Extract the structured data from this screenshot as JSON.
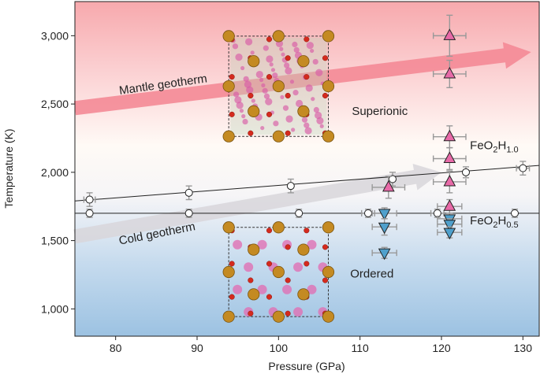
{
  "chart_data": {
    "type": "scatter",
    "xlabel": "Pressure (GPa)",
    "ylabel": "Temperature (K)",
    "xlim": [
      75,
      132
    ],
    "ylim": [
      800,
      3250
    ],
    "xticks": [
      80,
      90,
      100,
      110,
      120,
      130
    ],
    "yticks": [
      1000,
      1500,
      2000,
      2500,
      3000
    ],
    "ytick_labels": [
      "1,000",
      "1,500",
      "2,000",
      "2,500",
      "3,000"
    ],
    "grid": false,
    "background": "vertical gradient: red (top) to white (~2000 K) to blue (bottom)",
    "series": [
      {
        "name": "FeO2H1.0 boundary",
        "marker": "circle-open",
        "points": [
          {
            "x": 76.8,
            "y": 1800,
            "xerr": 0.7,
            "yerr": 50
          },
          {
            "x": 89,
            "y": 1850,
            "xerr": 0,
            "yerr": 50
          },
          {
            "x": 101.5,
            "y": 1900,
            "xerr": 0,
            "yerr": 50
          },
          {
            "x": 114,
            "y": 1950,
            "xerr": 0,
            "yerr": 50
          },
          {
            "x": 123,
            "y": 2000,
            "xerr": 0,
            "yerr": 40
          },
          {
            "x": 130,
            "y": 2030,
            "xerr": 0.8,
            "yerr": 50
          }
        ],
        "fit_line": {
          "x": [
            75,
            132
          ],
          "y": [
            1790,
            2050
          ]
        }
      },
      {
        "name": "FeO2H0.5 boundary",
        "marker": "circle-open",
        "points": [
          {
            "x": 76.8,
            "y": 1700,
            "xerr": 0,
            "yerr": 30
          },
          {
            "x": 89,
            "y": 1700,
            "xerr": 0,
            "yerr": 30
          },
          {
            "x": 102.5,
            "y": 1700,
            "xerr": 0,
            "yerr": 30
          },
          {
            "x": 111,
            "y": 1700,
            "xerr": 0.8,
            "yerr": 30
          },
          {
            "x": 119.5,
            "y": 1700,
            "xerr": 0.8,
            "yerr": 30
          },
          {
            "x": 129,
            "y": 1700,
            "xerr": 0,
            "yerr": 30
          }
        ],
        "fit_line": {
          "x": [
            75,
            132
          ],
          "y": [
            1700,
            1700
          ]
        }
      },
      {
        "name": "Superionic",
        "marker": "triangle-up",
        "color": "#e86aa8",
        "points": [
          {
            "x": 121,
            "y": 3000,
            "xerr": 2,
            "yerr": 150
          },
          {
            "x": 121,
            "y": 2720,
            "xerr": 2,
            "yerr": 100
          },
          {
            "x": 121,
            "y": 2260,
            "xerr": 2,
            "yerr": 80
          },
          {
            "x": 121,
            "y": 2100,
            "xerr": 2,
            "yerr": 80
          },
          {
            "x": 121,
            "y": 1930,
            "xerr": 2,
            "yerr": 80
          },
          {
            "x": 121,
            "y": 1750,
            "xerr": 1.5,
            "yerr": 50
          },
          {
            "x": 113.5,
            "y": 1890,
            "xerr": 2,
            "yerr": 80
          }
        ]
      },
      {
        "name": "Ordered",
        "marker": "triangle-down",
        "color": "#4fa0cc",
        "points": [
          {
            "x": 113,
            "y": 1700,
            "xerr": 1.5,
            "yerr": 40
          },
          {
            "x": 113,
            "y": 1600,
            "xerr": 1.5,
            "yerr": 60
          },
          {
            "x": 113,
            "y": 1410,
            "xerr": 1.5,
            "yerr": 40
          },
          {
            "x": 121,
            "y": 1660,
            "xerr": 1.5,
            "yerr": 40
          },
          {
            "x": 121,
            "y": 1620,
            "xerr": 1.5,
            "yerr": 40
          },
          {
            "x": 121,
            "y": 1560,
            "xerr": 1.5,
            "yerr": 40
          }
        ]
      }
    ],
    "geotherms": [
      {
        "name": "Mantle geotherm",
        "from": {
          "x": 75,
          "y": 2470
        },
        "to": {
          "x": 131,
          "y": 2880
        },
        "color": "#f48a96"
      },
      {
        "name": "Cold geotherm",
        "from": {
          "x": 75,
          "y": 1530
        },
        "to": {
          "x": 120,
          "y": 2000
        },
        "color": "#d8d6da"
      }
    ],
    "annotations": [
      {
        "text": "Mantle geotherm",
        "at": {
          "x": 80.5,
          "y": 2570
        },
        "rotate": -8
      },
      {
        "text": "Cold geotherm",
        "at": {
          "x": 80.5,
          "y": 1470
        },
        "rotate": -11
      },
      {
        "text": "Superionic",
        "at": {
          "x": 109,
          "y": 2420
        }
      },
      {
        "text": "Ordered",
        "at": {
          "x": 108.8,
          "y": 1230
        }
      },
      {
        "text_parts": [
          "FeO",
          "2",
          "H",
          "1.0"
        ],
        "at": {
          "x": 123.5,
          "y": 2170
        }
      },
      {
        "text_parts": [
          "FeO",
          "2",
          "H",
          "0.5"
        ],
        "at": {
          "x": 123.5,
          "y": 1620
        }
      }
    ],
    "insets": [
      {
        "name": "superionic-structure",
        "x_range": [
          93.5,
          106.5
        ],
        "y_range": [
          2240,
          3020
        ]
      },
      {
        "name": "ordered-structure",
        "x_range": [
          93.5,
          106.5
        ],
        "y_range": [
          920,
          1620
        ]
      }
    ]
  }
}
